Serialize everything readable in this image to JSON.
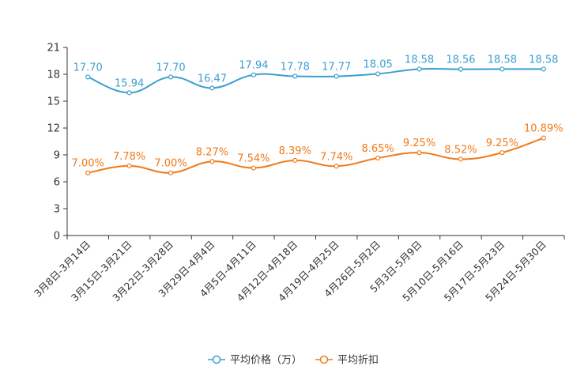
{
  "chart_data": {
    "type": "line",
    "categories": [
      "3月8日-3月14日",
      "3月15日-3月21日",
      "3月22日-3月28日",
      "3月29日-4月4日",
      "4月5日-4月11日",
      "4月12日-4月18日",
      "4月19日-4月25日",
      "4月26日-5月2日",
      "5月3日-5月9日",
      "5月10日-5月16日",
      "5月17日-5月23日",
      "5月24日-5月30日"
    ],
    "ylim": [
      0,
      21
    ],
    "yticks": [
      0,
      3,
      6,
      9,
      12,
      15,
      18,
      21
    ],
    "series": [
      {
        "name": "平均价格（万）",
        "color": "#3a9fd0",
        "values": [
          17.7,
          15.94,
          17.7,
          16.47,
          17.94,
          17.78,
          17.77,
          18.05,
          18.58,
          18.56,
          18.58,
          18.58
        ],
        "labels": [
          "17.70",
          "15.94",
          "17.70",
          "16.47",
          "17.94",
          "17.78",
          "17.77",
          "18.05",
          "18.58",
          "18.56",
          "18.58",
          "18.58"
        ]
      },
      {
        "name": "平均折扣",
        "color": "#f07a1a",
        "values": [
          7.0,
          7.78,
          7.0,
          8.27,
          7.54,
          8.39,
          7.74,
          8.65,
          9.25,
          8.52,
          9.25,
          10.89
        ],
        "labels": [
          "7.00%",
          "7.78%",
          "7.00%",
          "8.27%",
          "7.54%",
          "8.39%",
          "7.74%",
          "8.65%",
          "9.25%",
          "8.52%",
          "9.25%",
          "10.89%"
        ]
      }
    ],
    "legend_position": "bottom-center"
  }
}
